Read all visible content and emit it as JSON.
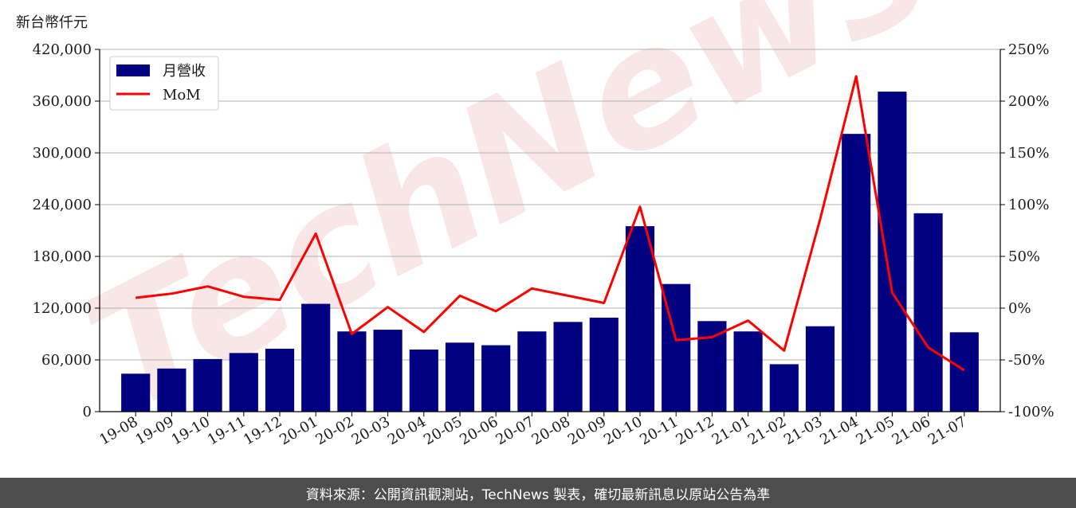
{
  "unit_label": "新台幣仟元",
  "footer_text": "資料來源：公開資訊觀測站，TechNews 製表，確切最新訊息以原站公告為準",
  "watermark_text": "TechNews",
  "colors": {
    "bar": "#000080",
    "line": "#ff0000",
    "grid": "#b0b0b0",
    "footer_bg": "#4d4d4d",
    "watermark": "#f2c9c9"
  },
  "chart_data": {
    "type": "bar",
    "categories": [
      "19-08",
      "19-09",
      "19-10",
      "19-11",
      "19-12",
      "20-01",
      "20-02",
      "20-03",
      "20-04",
      "20-05",
      "20-06",
      "20-07",
      "20-08",
      "20-09",
      "20-10",
      "20-11",
      "20-12",
      "21-01",
      "21-02",
      "21-03",
      "21-04",
      "21-05",
      "21-06",
      "21-07"
    ],
    "series": [
      {
        "name": "月營收",
        "axis": "left",
        "type": "bar",
        "values": [
          44000,
          50000,
          61000,
          68000,
          73000,
          125000,
          93000,
          95000,
          72000,
          80000,
          77000,
          93000,
          104000,
          109000,
          215000,
          148000,
          105000,
          93000,
          55000,
          99000,
          322000,
          371000,
          230000,
          92000
        ]
      },
      {
        "name": "MoM",
        "axis": "right",
        "type": "line",
        "values": [
          10,
          14,
          21,
          11,
          8,
          72,
          -25,
          1,
          -23,
          12,
          -3,
          19,
          12,
          5,
          98,
          -31,
          -28,
          -12,
          -41,
          86,
          224,
          15,
          -38,
          -60
        ]
      }
    ],
    "left_axis": {
      "ylim": [
        0,
        420000
      ],
      "ticks": [
        0,
        60000,
        120000,
        180000,
        240000,
        300000,
        360000,
        420000
      ],
      "tick_labels": [
        "0",
        "60,000",
        "120,000",
        "180,000",
        "240,000",
        "300,000",
        "360,000",
        "420,000"
      ]
    },
    "right_axis": {
      "ylim": [
        -100,
        250
      ],
      "ticks": [
        -100,
        -50,
        0,
        50,
        100,
        150,
        200,
        250
      ],
      "tick_labels": [
        "-100%",
        "-50%",
        "0%",
        "50%",
        "100%",
        "150%",
        "200%",
        "250%"
      ]
    },
    "grid": true,
    "legend": "top-left"
  }
}
